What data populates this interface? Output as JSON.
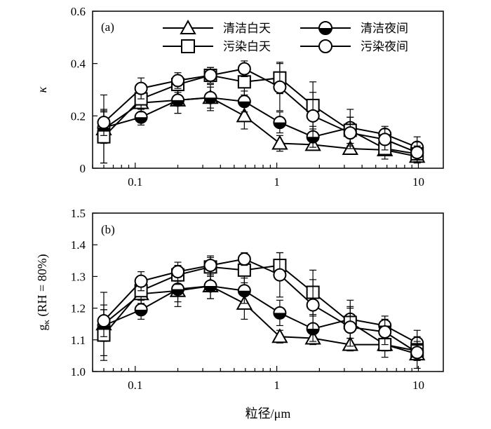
{
  "chart_data": [
    {
      "type": "line",
      "panel_label": "(a)",
      "ylabel": "κ",
      "xlabel": "",
      "xscale": "log",
      "xlim": [
        0.05,
        15
      ],
      "ylim": [
        0,
        0.6
      ],
      "x_ticks": [
        0.1,
        1,
        10
      ],
      "x_tick_labels": [
        "0.1",
        "1",
        "10"
      ],
      "y_ticks": [
        0,
        0.2,
        0.4,
        0.6
      ],
      "y_tick_labels": [
        "0",
        "0.2",
        "0.4",
        "0.6"
      ],
      "grid": false,
      "legend_position": "top-right",
      "x": [
        0.06,
        0.11,
        0.2,
        0.34,
        0.59,
        1.05,
        1.8,
        3.3,
        5.8,
        9.8
      ],
      "series": [
        {
          "name": "清洁白天",
          "marker": "triangle",
          "values": [
            0.15,
            0.25,
            0.26,
            0.27,
            0.2,
            0.095,
            0.09,
            0.075,
            0.07,
            0.045
          ],
          "errors": [
            0.13,
            0.05,
            0.05,
            0.05,
            0.05,
            0.03,
            0.02,
            0.02,
            0.02,
            0.02
          ]
        },
        {
          "name": "清洁夜间",
          "marker": "half-filled-circle",
          "values": [
            0.155,
            0.195,
            0.26,
            0.27,
            0.255,
            0.175,
            0.12,
            0.155,
            0.13,
            0.08
          ],
          "errors": [
            0.06,
            0.03,
            0.05,
            0.04,
            0.04,
            0.04,
            0.04,
            0.07,
            0.03,
            0.04
          ]
        },
        {
          "name": "污染白天",
          "marker": "square",
          "values": [
            0.12,
            0.265,
            0.32,
            0.355,
            0.33,
            0.345,
            0.24,
            0.145,
            0.075,
            0.055
          ],
          "errors": [
            0.1,
            0.05,
            0.03,
            0.03,
            0.05,
            0.06,
            0.09,
            0.05,
            0.04,
            0.03
          ]
        },
        {
          "name": "污染夜间",
          "marker": "open-circle",
          "values": [
            0.175,
            0.305,
            0.335,
            0.355,
            0.38,
            0.31,
            0.2,
            0.135,
            0.11,
            0.06
          ],
          "errors": [
            0.05,
            0.04,
            0.03,
            0.03,
            0.03,
            0.09,
            0.09,
            0.06,
            0.04,
            0.04
          ]
        }
      ]
    },
    {
      "type": "line",
      "panel_label": "(b)",
      "ylabel": "gκ (RH = 80%)",
      "ylabel_parts": [
        "g",
        "κ",
        " (RH = 80%)"
      ],
      "xlabel": "粒径/μm",
      "xscale": "log",
      "xlim": [
        0.05,
        15
      ],
      "ylim": [
        1.0,
        1.5
      ],
      "x_ticks": [
        0.1,
        1,
        10
      ],
      "x_tick_labels": [
        "0.1",
        "1",
        "10"
      ],
      "y_ticks": [
        1.0,
        1.1,
        1.2,
        1.3,
        1.4,
        1.5
      ],
      "y_tick_labels": [
        "1.0",
        "1.1",
        "1.2",
        "1.3",
        "1.4",
        "1.5"
      ],
      "grid": false,
      "x": [
        0.06,
        0.11,
        0.2,
        0.34,
        0.59,
        1.05,
        1.8,
        3.3,
        5.8,
        9.8
      ],
      "series": [
        {
          "name": "清洁白天",
          "marker": "triangle",
          "values": [
            1.15,
            1.245,
            1.255,
            1.27,
            1.215,
            1.11,
            1.105,
            1.085,
            1.085,
            1.055
          ],
          "errors": [
            0.1,
            0.04,
            0.05,
            0.04,
            0.05,
            0.02,
            0.02,
            0.02,
            0.02,
            0.02
          ]
        },
        {
          "name": "清洁夜间",
          "marker": "half-filled-circle",
          "values": [
            1.145,
            1.195,
            1.26,
            1.27,
            1.255,
            1.185,
            1.135,
            1.165,
            1.145,
            1.09
          ],
          "errors": [
            0.05,
            0.03,
            0.04,
            0.04,
            0.04,
            0.04,
            0.04,
            0.06,
            0.03,
            0.04
          ]
        },
        {
          "name": "污染白天",
          "marker": "square",
          "values": [
            1.115,
            1.255,
            1.305,
            1.33,
            1.32,
            1.335,
            1.25,
            1.155,
            1.085,
            1.065
          ],
          "errors": [
            0.08,
            0.04,
            0.03,
            0.03,
            0.04,
            0.04,
            0.07,
            0.05,
            0.04,
            0.03
          ]
        },
        {
          "name": "污染夜间",
          "marker": "open-circle",
          "values": [
            1.16,
            1.285,
            1.315,
            1.335,
            1.355,
            1.305,
            1.21,
            1.14,
            1.125,
            1.06
          ],
          "errors": [
            0.05,
            0.03,
            0.03,
            0.03,
            0.02,
            0.07,
            0.08,
            0.06,
            0.04,
            0.05
          ]
        }
      ]
    }
  ]
}
